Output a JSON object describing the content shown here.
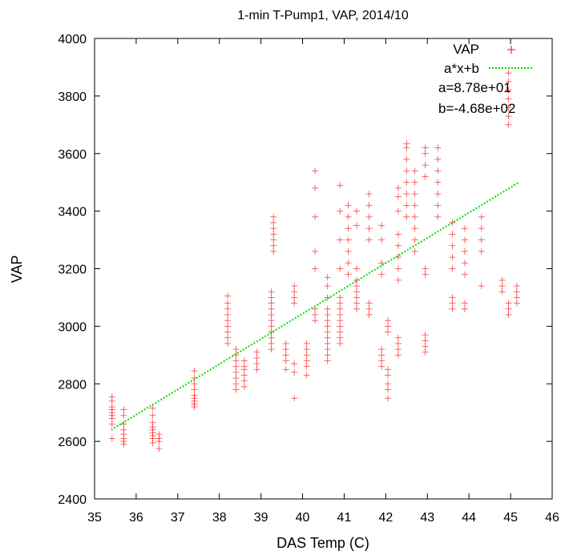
{
  "chart_data": {
    "type": "scatter",
    "title": "1-min T-Pump1, VAP, 2014/10",
    "xlabel": "DAS Temp (C)",
    "ylabel": "VAP",
    "xlim": [
      35,
      46
    ],
    "ylim": [
      2400,
      4000
    ],
    "x_ticks": [
      "35",
      "36",
      "37",
      "38",
      "39",
      "40",
      "41",
      "42",
      "43",
      "44",
      "45",
      "46"
    ],
    "y_ticks": [
      "2400",
      "2600",
      "2800",
      "3000",
      "3200",
      "3400",
      "3600",
      "3800",
      "4000"
    ],
    "grid": false,
    "legend_position": "top-right",
    "colors": {
      "scatter": "#ff0000",
      "fit": "#00dd00"
    },
    "series": [
      {
        "name": "VAP",
        "kind": "scatter",
        "marker": "plus",
        "clusters": [
          {
            "x": 35.42,
            "y": [
              2610,
              2660,
              2680,
              2690,
              2700,
              2710,
              2720,
              2740,
              2755
            ]
          },
          {
            "x": 35.7,
            "y": [
              2590,
              2600,
              2610,
              2625,
              2640,
              2660,
              2690,
              2710
            ]
          },
          {
            "x": 36.4,
            "y": [
              2595,
              2610,
              2620,
              2630,
              2640,
              2650,
              2665,
              2690,
              2715
            ]
          },
          {
            "x": 36.55,
            "y": [
              2575,
              2600,
              2610,
              2625
            ]
          },
          {
            "x": 37.4,
            "y": [
              2720,
              2730,
              2740,
              2750,
              2760,
              2780,
              2800,
              2820,
              2845
            ]
          },
          {
            "x": 38.2,
            "y": [
              2940,
              2960,
              2980,
              3000,
              3020,
              3040,
              3060,
              3080,
              3105
            ]
          },
          {
            "x": 38.4,
            "y": [
              2780,
              2800,
              2820,
              2840,
              2860,
              2880,
              2900,
              2920
            ]
          },
          {
            "x": 38.6,
            "y": [
              2790,
              2810,
              2830,
              2850,
              2860,
              2880
            ]
          },
          {
            "x": 38.9,
            "y": [
              2850,
              2870,
              2890,
              2910
            ]
          },
          {
            "x": 39.25,
            "y": [
              2920,
              2940,
              2960,
              2980,
              3000,
              3020,
              3040,
              3060,
              3080,
              3100,
              3120
            ]
          },
          {
            "x": 39.3,
            "y": [
              3260,
              3280,
              3300,
              3320,
              3340,
              3360,
              3380
            ]
          },
          {
            "x": 39.6,
            "y": [
              2850,
              2880,
              2900,
              2920,
              2940
            ]
          },
          {
            "x": 39.8,
            "y": [
              2750,
              2840,
              2870,
              3080,
              3100,
              3120,
              3140
            ]
          },
          {
            "x": 40.1,
            "y": [
              2830,
              2860,
              2880,
              2900,
              2920,
              2940
            ]
          },
          {
            "x": 40.3,
            "y": [
              3020,
              3040,
              3060,
              3200,
              3260,
              3380,
              3480,
              3540
            ]
          },
          {
            "x": 40.6,
            "y": [
              2880,
              2900,
              2920,
              2940,
              2960,
              2980,
              3000,
              3020,
              3040,
              3060,
              3100,
              3140,
              3170
            ]
          },
          {
            "x": 40.9,
            "y": [
              2940,
              2960,
              2980,
              3000,
              3020,
              3040,
              3060,
              3080,
              3100,
              3200,
              3300,
              3400,
              3490
            ]
          },
          {
            "x": 41.1,
            "y": [
              3180,
              3220,
              3260,
              3300,
              3340,
              3380,
              3420
            ]
          },
          {
            "x": 41.3,
            "y": [
              3060,
              3080,
              3100,
              3120,
              3140,
              3160,
              3200,
              3350,
              3400
            ]
          },
          {
            "x": 41.6,
            "y": [
              3040,
              3060,
              3080,
              3300,
              3340,
              3380,
              3420,
              3460
            ]
          },
          {
            "x": 41.9,
            "y": [
              2860,
              2880,
              2900,
              2920,
              3180,
              3220,
              3300,
              3350
            ]
          },
          {
            "x": 42.05,
            "y": [
              2750,
              2780,
              2800,
              2830,
              2850,
              2980,
              3000,
              3020
            ]
          },
          {
            "x": 42.3,
            "y": [
              2900,
              2920,
              2940,
              2960,
              3160,
              3200,
              3240,
              3280,
              3320,
              3400,
              3450,
              3480
            ]
          },
          {
            "x": 42.5,
            "y": [
              3380,
              3420,
              3460,
              3500,
              3540,
              3580,
              3620,
              3635
            ]
          },
          {
            "x": 42.7,
            "y": [
              3260,
              3300,
              3340,
              3380,
              3420,
              3460,
              3500,
              3540
            ]
          },
          {
            "x": 42.95,
            "y": [
              2910,
              2930,
              2950,
              2970,
              3180,
              3200,
              3520,
              3560,
              3600,
              3620
            ]
          },
          {
            "x": 43.25,
            "y": [
              3380,
              3420,
              3460,
              3500,
              3540,
              3580,
              3620
            ]
          },
          {
            "x": 43.6,
            "y": [
              3060,
              3080,
              3100,
              3200,
              3240,
              3280,
              3320,
              3360
            ]
          },
          {
            "x": 43.9,
            "y": [
              3060,
              3080,
              3180,
              3220,
              3260,
              3300,
              3340
            ]
          },
          {
            "x": 44.3,
            "y": [
              3140,
              3260,
              3300,
              3340,
              3380
            ]
          },
          {
            "x": 44.8,
            "y": [
              3120,
              3140,
              3160
            ]
          },
          {
            "x": 44.95,
            "y": [
              3040,
              3060,
              3080,
              3700,
              3730,
              3760,
              3790,
              3820,
              3850,
              3880
            ]
          },
          {
            "x": 45.15,
            "y": [
              3080,
              3100,
              3120,
              3140
            ]
          }
        ]
      },
      {
        "name": "a*x+b",
        "kind": "line",
        "style": "dotted",
        "x": [
          35.4,
          45.2
        ],
        "y": [
          2640,
          3500
        ]
      }
    ],
    "legend": [
      {
        "label": "VAP",
        "marker": "plus"
      },
      {
        "label": "a*x+b",
        "marker": "dotted-line"
      }
    ],
    "annotations": [
      "a=8.78e+01",
      "b=-4.68e+02"
    ]
  }
}
